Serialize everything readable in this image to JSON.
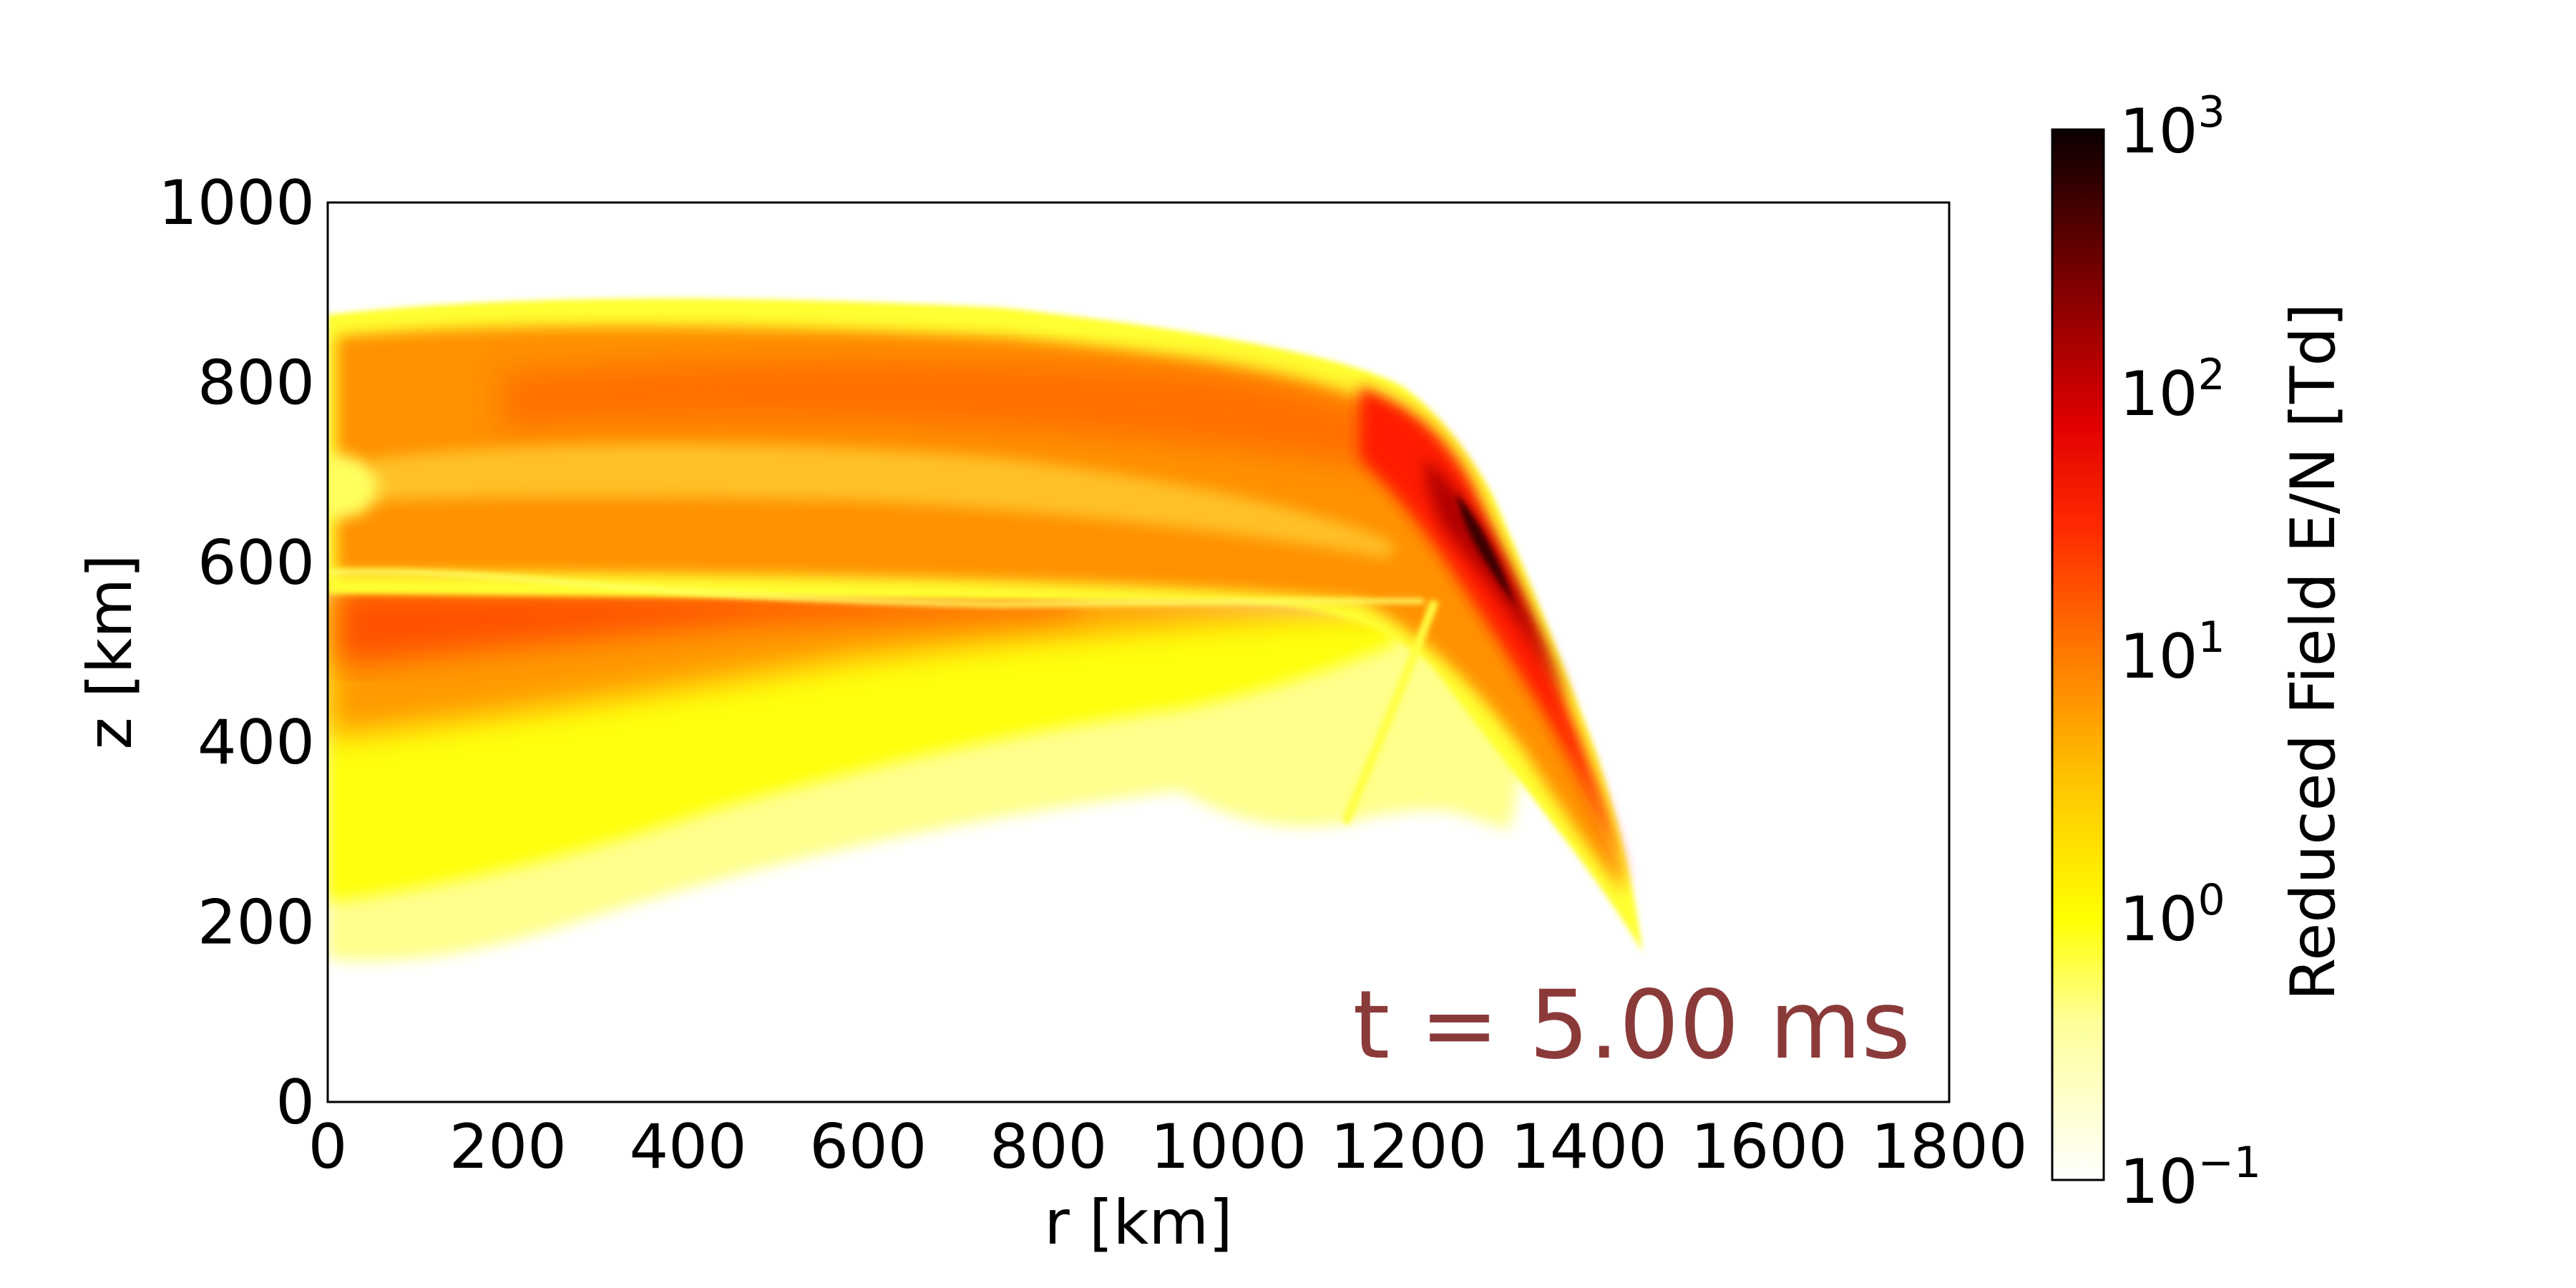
{
  "chart_data": {
    "type": "heatmap",
    "xlabel": "r [km]",
    "ylabel": "z [km]",
    "xlim": [
      0,
      1800
    ],
    "ylim": [
      0,
      1000
    ],
    "x_ticks": [
      "0",
      "200",
      "400",
      "600",
      "800",
      "1000",
      "1200",
      "1400",
      "1600",
      "1800"
    ],
    "y_ticks": [
      "0",
      "200",
      "400",
      "600",
      "800",
      "1000"
    ],
    "annotation": "t = 5.00 ms",
    "annotation_color": "#8B3A3A",
    "colorbar": {
      "label": "Reduced Field E/N [Td]",
      "scale": "log",
      "range": [
        0.1,
        1000
      ],
      "colormap": "hot_r",
      "tick_bases": [
        "10",
        "10",
        "10",
        "10",
        "10"
      ],
      "tick_exponents": [
        "−1",
        "0",
        "1",
        "2",
        "3"
      ]
    },
    "features": [
      {
        "name": "upper-plume",
        "description": "orange band from r=0 to ~1250 km, z ~ 590-890 km, about 3-10 Td"
      },
      {
        "name": "lower-lobe",
        "description": "red-orange to yellow lobe at r=0 to ~1200 km, z ~ 150-590 km, peak ~10 Td near z=500 km"
      },
      {
        "name": "front",
        "description": "curved high-field front peaking near 100-500 Td at r~1300 km, z~600 km, tapering to r~1450 km, z~170 km"
      }
    ]
  }
}
